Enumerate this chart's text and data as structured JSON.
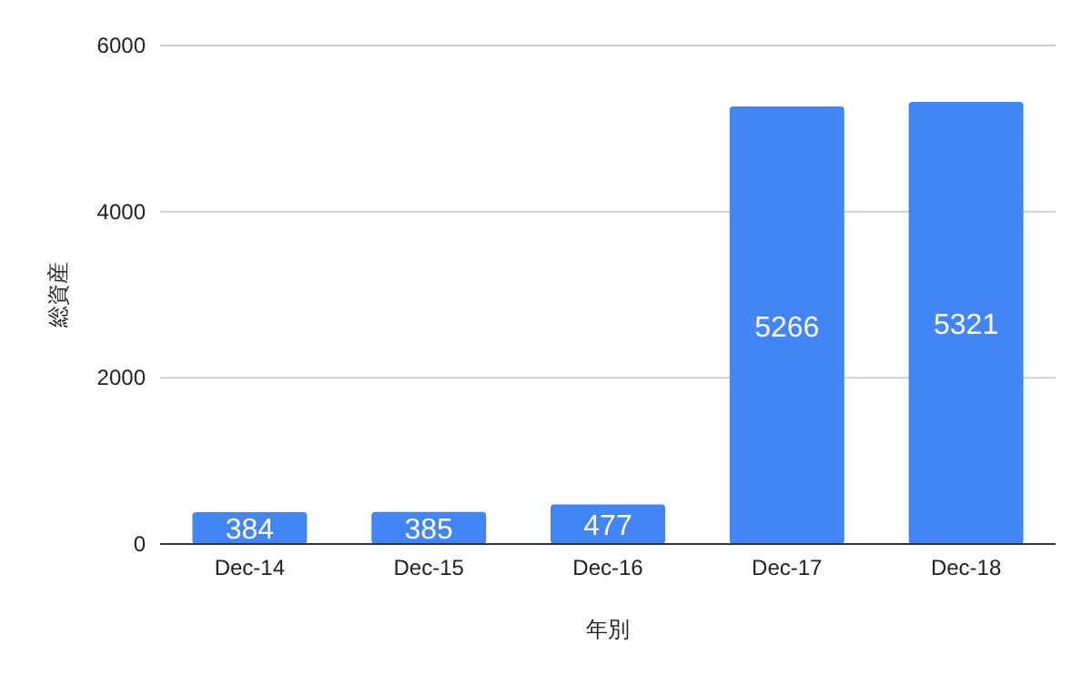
{
  "chart_data": {
    "type": "bar",
    "xlabel": "年別",
    "ylabel": "総資産",
    "categories": [
      "Dec-14",
      "Dec-15",
      "Dec-16",
      "Dec-17",
      "Dec-18"
    ],
    "values": [
      384,
      385,
      477,
      5266,
      5321
    ],
    "color": "#4285f4",
    "ylim": [
      0,
      6000
    ],
    "yticks": [
      0,
      2000,
      4000,
      6000
    ],
    "grid": "y",
    "data_labels": true
  }
}
